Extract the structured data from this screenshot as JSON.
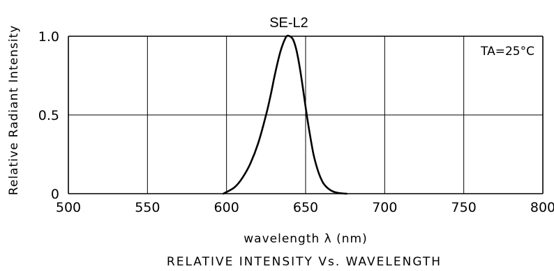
{
  "chart_data": {
    "type": "line",
    "title": "SE-L2",
    "xlabel": "wavelength λ (nm)",
    "ylabel": "Relative Radiant Intensity",
    "caption": "RELATIVE INTENSITY Vs. WAVELENGTH",
    "annotation": "TA=25°C",
    "xlim": [
      500,
      800
    ],
    "ylim": [
      0,
      1.0
    ],
    "x_ticks": [
      "500",
      "550",
      "600",
      "650",
      "700",
      "750",
      "800"
    ],
    "y_ticks": [
      "0",
      "0.5",
      "1.0"
    ],
    "grid": true,
    "series": [
      {
        "x": [
          598,
          605,
          610,
          615,
          620,
          625,
          628,
          630,
          632,
          634,
          636,
          638,
          640,
          642,
          644,
          646,
          648,
          650,
          652,
          655,
          658,
          661,
          664,
          667,
          670,
          673,
          676
        ],
        "y": [
          0.0,
          0.04,
          0.1,
          0.19,
          0.32,
          0.5,
          0.63,
          0.73,
          0.82,
          0.9,
          0.96,
          1.0,
          1.0,
          0.98,
          0.92,
          0.82,
          0.69,
          0.55,
          0.42,
          0.25,
          0.14,
          0.07,
          0.035,
          0.015,
          0.006,
          0.002,
          0.0
        ]
      }
    ],
    "colors": {
      "line": "#000000",
      "grid": "#000000"
    }
  }
}
